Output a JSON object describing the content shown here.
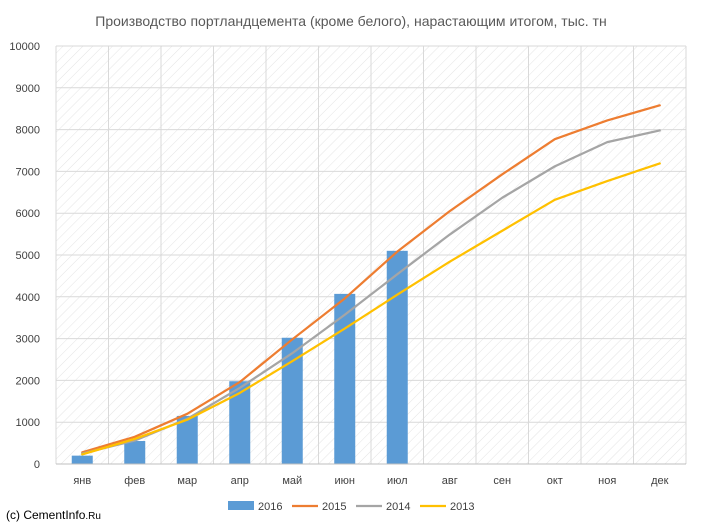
{
  "chart_data": {
    "type": "bar",
    "title": "Производство портландцемента (кроме белого), нарастающим итогом, тыс. тн",
    "categories": [
      "янв",
      "фев",
      "мар",
      "апр",
      "май",
      "июн",
      "июл",
      "авг",
      "сен",
      "окт",
      "ноя",
      "дек"
    ],
    "ylim": [
      0,
      10000
    ],
    "yticks": [
      0,
      1000,
      2000,
      3000,
      4000,
      5000,
      6000,
      7000,
      8000,
      9000,
      10000
    ],
    "grid": true,
    "legend_position": "bottom",
    "series": [
      {
        "name": "2016",
        "type": "bar",
        "color": "#5B9BD5",
        "values": [
          200,
          550,
          1150,
          1980,
          3020,
          4070,
          5100,
          null,
          null,
          null,
          null,
          null
        ]
      },
      {
        "name": "2015",
        "type": "line",
        "color": "#ED7D31",
        "values": [
          280,
          650,
          1200,
          1960,
          2980,
          3960,
          5080,
          6050,
          6930,
          7770,
          8220,
          8580
        ]
      },
      {
        "name": "2014",
        "type": "line",
        "color": "#A5A5A5",
        "values": [
          250,
          560,
          1080,
          1820,
          2650,
          3570,
          4540,
          5490,
          6370,
          7120,
          7700,
          7980
        ]
      },
      {
        "name": "2013",
        "type": "line",
        "color": "#FFC000",
        "values": [
          230,
          600,
          1060,
          1700,
          2460,
          3240,
          4050,
          4840,
          5580,
          6320,
          6770,
          7190
        ]
      }
    ]
  },
  "credit": {
    "prefix": "(c) ",
    "site": "CementInfo",
    "suffix": ".Ru"
  }
}
